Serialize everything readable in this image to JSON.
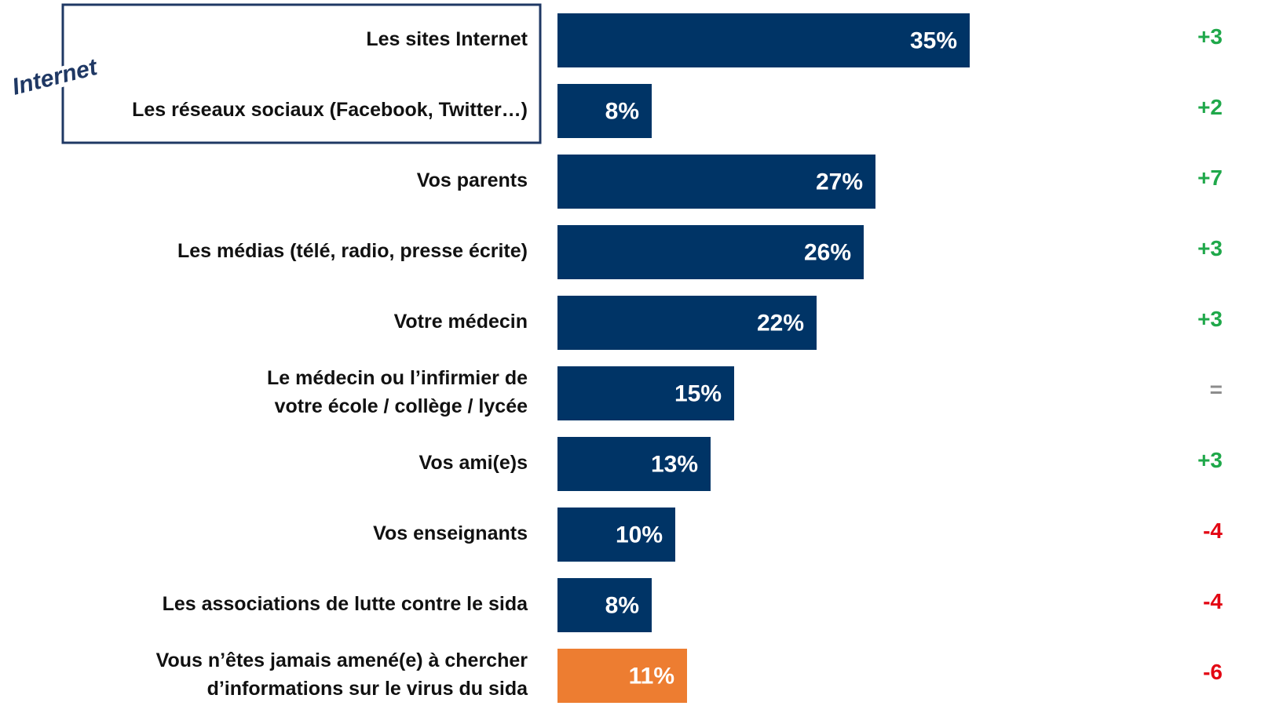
{
  "chart_data": {
    "type": "barh",
    "annotation": "Internet",
    "categories": [
      "Les sites Internet",
      "Les réseaux sociaux (Facebook, Twitter…)",
      "Vos parents",
      "Les médias (télé, radio, presse écrite)",
      "Votre médecin",
      "Le médecin ou l’infirmier de\nvotre école / collège / lycée",
      "Vos ami(e)s",
      "Vos enseignants",
      "Les associations de lutte contre le sida",
      "Vous n’êtes jamais amené(e) à chercher\nd’informations sur le virus du sida"
    ],
    "values": [
      35,
      8,
      27,
      26,
      22,
      15,
      13,
      10,
      8,
      11
    ],
    "value_labels": [
      "35%",
      "8%",
      "27%",
      "26%",
      "22%",
      "15%",
      "13%",
      "10%",
      "8%",
      "11%"
    ],
    "colors": [
      "#003466",
      "#003466",
      "#003466",
      "#003466",
      "#003466",
      "#003466",
      "#003466",
      "#003466",
      "#003466",
      "#ed7d31"
    ],
    "changes": [
      3,
      2,
      7,
      3,
      3,
      0,
      3,
      -4,
      -4,
      -6
    ],
    "change_labels": [
      "+3",
      "+2",
      "+7",
      "+3",
      "+3",
      "=",
      "+3",
      "-4",
      "-4",
      "-6"
    ],
    "change_colors": {
      "up": "#1fa84a",
      "down": "#e30613",
      "same": "#8c8c8c"
    },
    "xlim": [
      0,
      35
    ]
  }
}
